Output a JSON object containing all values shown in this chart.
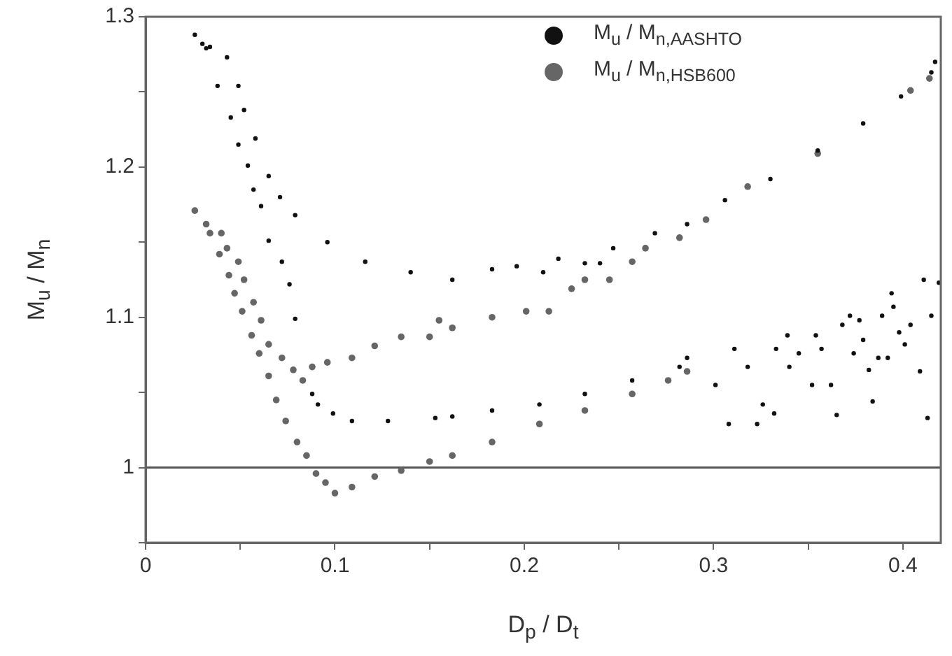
{
  "chart_data": {
    "type": "scatter",
    "xlabel": "D$_{p}$ / D$_{t}$",
    "ylabel": "M$_{u}$ / M$_{n}$",
    "xlim": [
      0,
      0.42
    ],
    "xticks": [
      0,
      {
        "value": 0.05,
        "label": null
      },
      0.1,
      {
        "value": 0.15,
        "label": null
      },
      0.2,
      {
        "value": 0.25,
        "label": null
      },
      0.3,
      {
        "value": 0.35,
        "label": null
      },
      0.4
    ],
    "ylim": [
      0.95,
      1.3
    ],
    "yticks": [
      {
        "value": 0.95,
        "label": null
      },
      1.0,
      {
        "value": 1.05,
        "label": null
      },
      1.1,
      {
        "value": 1.15,
        "label": null
      },
      1.2,
      {
        "value": 1.25,
        "label": null
      },
      1.3
    ],
    "grid": false,
    "legend": "top right",
    "marker": "circle",
    "ref_lines": [
      {
        "axis": "y",
        "value": 1.0,
        "color": "#555555"
      }
    ],
    "series": [
      {
        "name": "M$_{u}$ / M$_{n,AASHTO}$",
        "color": "#111111",
        "x": [
          0.026,
          0.03,
          0.034,
          0.043,
          0.049,
          0.052,
          0.058,
          0.065,
          0.071,
          0.079,
          0.096,
          0.116,
          0.14,
          0.162,
          0.183,
          0.196,
          0.21,
          0.218,
          0.232,
          0.24,
          0.247,
          0.269,
          0.286,
          0.306,
          0.33,
          0.355,
          0.379,
          0.399,
          0.415,
          0.417,
          0.032,
          0.038,
          0.045,
          0.049,
          0.054,
          0.057,
          0.061,
          0.065,
          0.072,
          0.076,
          0.079,
          0.088,
          0.091,
          0.099,
          0.109,
          0.128,
          0.153,
          0.162,
          0.183,
          0.208,
          0.232,
          0.257,
          0.282,
          0.286,
          0.301,
          0.308,
          0.311,
          0.318,
          0.323,
          0.326,
          0.332,
          0.333,
          0.339,
          0.34,
          0.345,
          0.352,
          0.354,
          0.357,
          0.362,
          0.365,
          0.368,
          0.372,
          0.374,
          0.377,
          0.379,
          0.382,
          0.384,
          0.387,
          0.389,
          0.392,
          0.394,
          0.395,
          0.398,
          0.401,
          0.404,
          0.409,
          0.411,
          0.413,
          0.415,
          0.419
        ],
        "values": [
          1.288,
          1.282,
          1.28,
          1.273,
          1.254,
          1.238,
          1.219,
          1.194,
          1.18,
          1.168,
          1.15,
          1.137,
          1.13,
          1.125,
          1.132,
          1.134,
          1.13,
          1.139,
          1.136,
          1.136,
          1.146,
          1.156,
          1.162,
          1.178,
          1.192,
          1.211,
          1.229,
          1.247,
          1.263,
          1.27,
          1.279,
          1.254,
          1.233,
          1.215,
          1.201,
          1.185,
          1.174,
          1.151,
          1.137,
          1.122,
          1.099,
          1.049,
          1.042,
          1.036,
          1.031,
          1.031,
          1.033,
          1.034,
          1.038,
          1.042,
          1.049,
          1.058,
          1.067,
          1.073,
          1.055,
          1.029,
          1.079,
          1.067,
          1.029,
          1.042,
          1.036,
          1.079,
          1.088,
          1.067,
          1.076,
          1.055,
          1.088,
          1.079,
          1.055,
          1.035,
          1.095,
          1.101,
          1.076,
          1.098,
          1.085,
          1.065,
          1.044,
          1.073,
          1.101,
          1.073,
          1.116,
          1.107,
          1.09,
          1.082,
          1.095,
          1.064,
          1.125,
          1.033,
          1.101,
          1.123
        ]
      },
      {
        "name": "M$_{u}$ / M$_{n,HSB600}$",
        "color": "#666666",
        "x": [
          0.026,
          0.032,
          0.04,
          0.043,
          0.049,
          0.052,
          0.057,
          0.061,
          0.065,
          0.072,
          0.078,
          0.083,
          0.088,
          0.096,
          0.109,
          0.121,
          0.135,
          0.15,
          0.155,
          0.162,
          0.183,
          0.201,
          0.213,
          0.225,
          0.232,
          0.245,
          0.257,
          0.264,
          0.282,
          0.296,
          0.318,
          0.355,
          0.404,
          0.414,
          0.034,
          0.039,
          0.044,
          0.047,
          0.051,
          0.056,
          0.06,
          0.065,
          0.069,
          0.074,
          0.08,
          0.085,
          0.09,
          0.095,
          0.1,
          0.109,
          0.121,
          0.135,
          0.15,
          0.162,
          0.183,
          0.208,
          0.232,
          0.257,
          0.276,
          0.286
        ],
        "values": [
          1.171,
          1.162,
          1.156,
          1.146,
          1.137,
          1.125,
          1.11,
          1.098,
          1.082,
          1.073,
          1.065,
          1.058,
          1.067,
          1.07,
          1.073,
          1.081,
          1.087,
          1.087,
          1.098,
          1.093,
          1.1,
          1.104,
          1.104,
          1.119,
          1.125,
          1.125,
          1.137,
          1.146,
          1.153,
          1.165,
          1.187,
          1.209,
          1.251,
          1.259,
          1.156,
          1.142,
          1.128,
          1.116,
          1.104,
          1.088,
          1.076,
          1.061,
          1.045,
          1.031,
          1.017,
          1.008,
          0.996,
          0.99,
          0.983,
          0.987,
          0.994,
          0.998,
          1.004,
          1.008,
          1.017,
          1.029,
          1.038,
          1.049,
          1.058,
          1.064
        ]
      }
    ]
  }
}
